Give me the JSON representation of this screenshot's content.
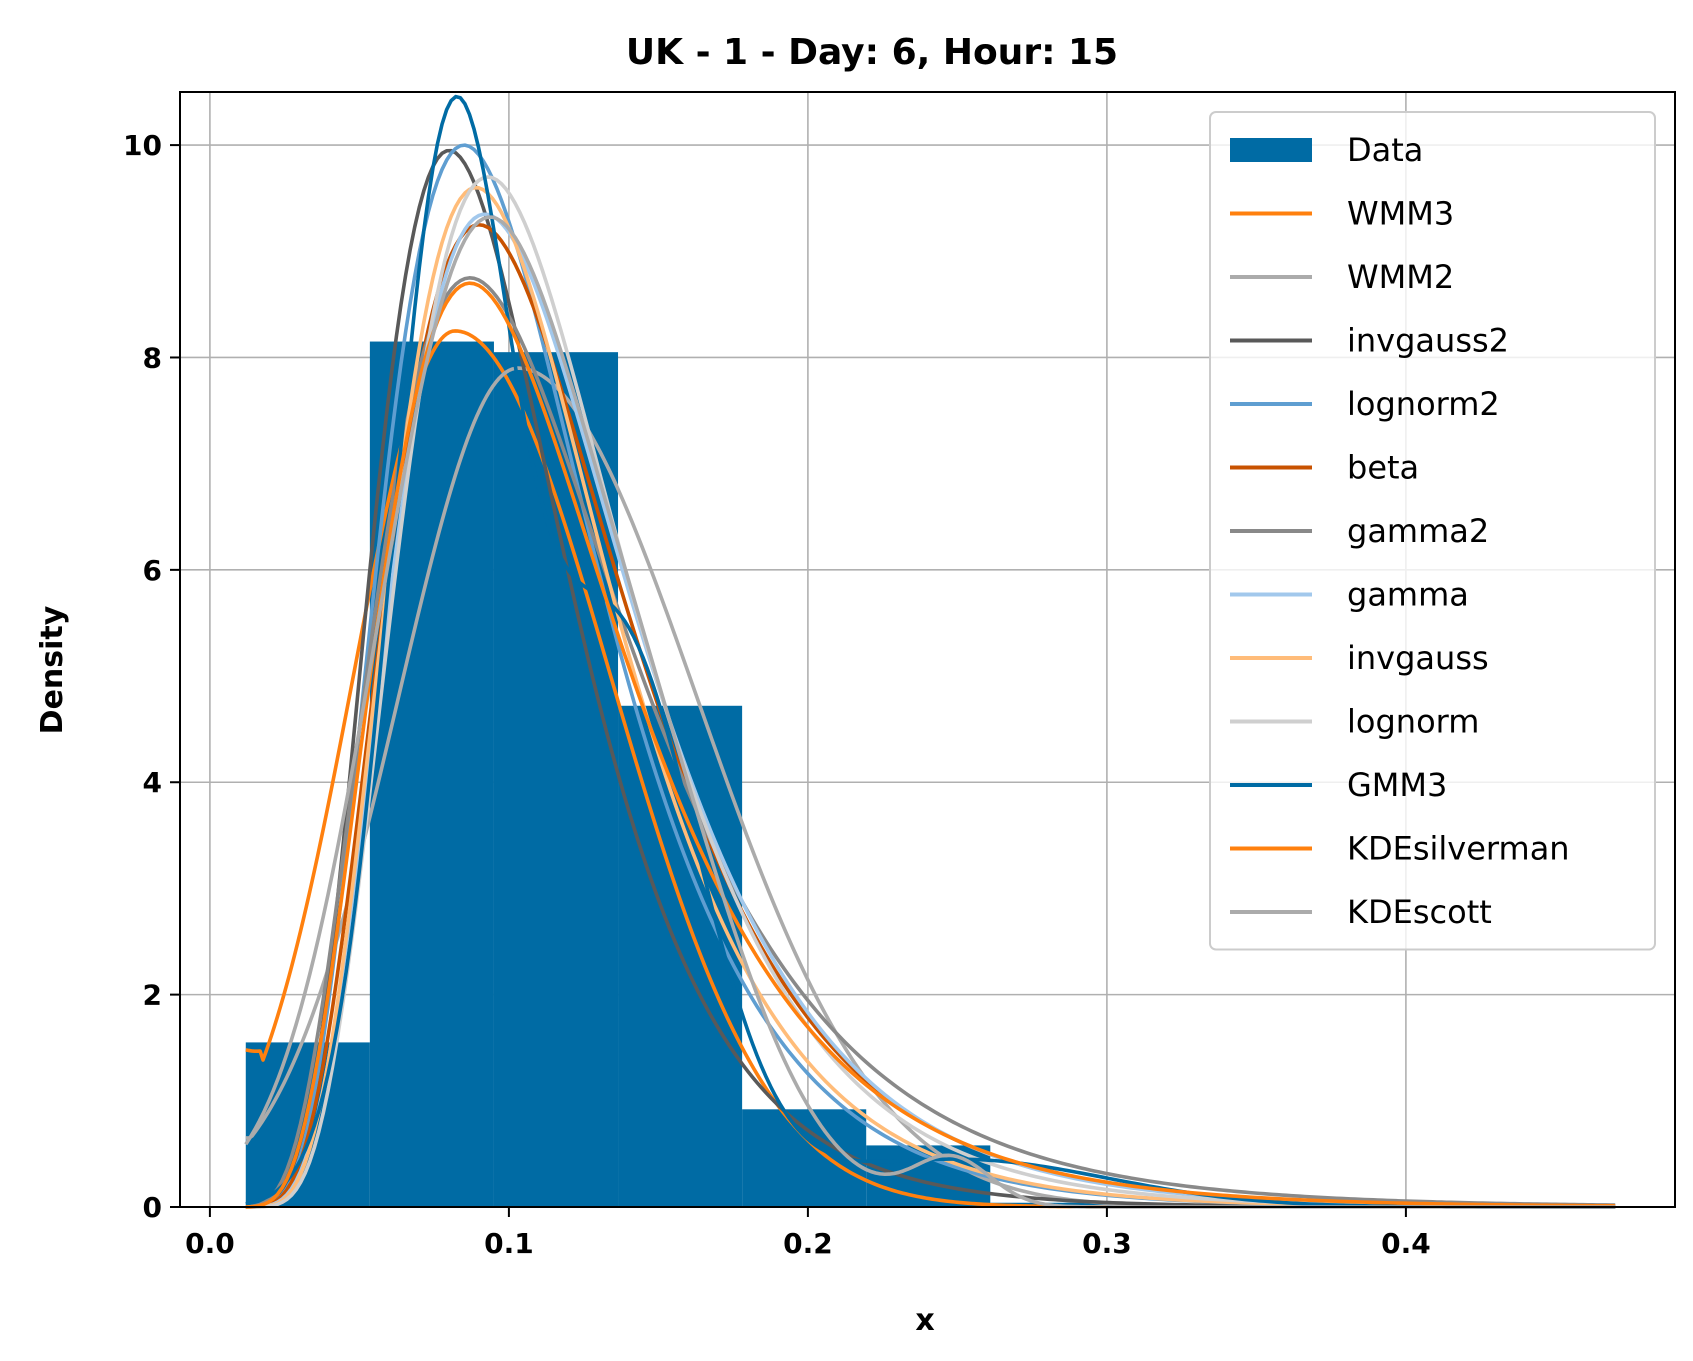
{
  "chart_data": {
    "type": "histogram+line",
    "title": "UK - 1 - Day: 6, Hour: 15",
    "xlabel": "x",
    "ylabel": "Density",
    "xlim": [
      -0.01,
      0.49
    ],
    "ylim": [
      0,
      10.5
    ],
    "xticks": [
      0.0,
      0.1,
      0.2,
      0.3,
      0.4
    ],
    "xtick_labels": [
      "0.0",
      "0.1",
      "0.2",
      "0.3",
      "0.4"
    ],
    "yticks": [
      0,
      2,
      4,
      6,
      8,
      10
    ],
    "ytick_labels": [
      "0",
      "2",
      "4",
      "6",
      "8",
      "10"
    ],
    "grid": true,
    "legend_position": "top-right",
    "histogram": {
      "name": "Data",
      "color": "#006BA4",
      "bin_edges": [
        0.012,
        0.0535,
        0.095,
        0.1365,
        0.178,
        0.2195,
        0.261,
        0.3025,
        0.344,
        0.3855,
        0.427,
        0.4685
      ],
      "densities": [
        1.55,
        8.15,
        8.05,
        4.72,
        0.92,
        0.58,
        0.04,
        0.02,
        0.01,
        0.005,
        0.01
      ]
    },
    "series": [
      {
        "name": "WMM3",
        "color": "#FF800E",
        "kind": "skewed",
        "x0": 0.012,
        "x1": 0.3,
        "peak_x": 0.082,
        "peak_y": 8.25,
        "start_y": 1.48,
        "left_width": 0.034,
        "right_width": 0.052
      },
      {
        "name": "WMM2",
        "color": "#ABABAB",
        "kind": "skewed",
        "x0": 0.012,
        "x1": 0.33,
        "peak_x": 0.103,
        "peak_y": 7.9,
        "start_y": 0.65,
        "left_width": 0.04,
        "right_width": 0.06
      },
      {
        "name": "invgauss2",
        "color": "#595959",
        "kind": "lognormal",
        "x0": 0.012,
        "x1": 0.47,
        "mode": 0.08,
        "peak_y": 9.95,
        "sigma": 0.4
      },
      {
        "name": "lognorm2",
        "color": "#5F9ED1",
        "kind": "lognormal",
        "x0": 0.012,
        "x1": 0.47,
        "mode": 0.085,
        "peak_y": 10.0,
        "sigma": 0.42
      },
      {
        "name": "beta",
        "color": "#C85200",
        "kind": "lognormal",
        "x0": 0.012,
        "x1": 0.47,
        "mode": 0.09,
        "peak_y": 9.25,
        "sigma": 0.44
      },
      {
        "name": "gamma2",
        "color": "#898989",
        "kind": "lognormal",
        "x0": 0.012,
        "x1": 0.47,
        "mode": 0.087,
        "peak_y": 8.75,
        "sigma": 0.48
      },
      {
        "name": "gamma",
        "color": "#A2C8EC",
        "kind": "lognormal",
        "x0": 0.012,
        "x1": 0.47,
        "mode": 0.092,
        "peak_y": 9.35,
        "sigma": 0.43
      },
      {
        "name": "invgauss",
        "color": "#FFBC79",
        "kind": "lognormal",
        "x0": 0.012,
        "x1": 0.47,
        "mode": 0.089,
        "peak_y": 9.6,
        "sigma": 0.41
      },
      {
        "name": "lognorm",
        "color": "#CFCFCF",
        "kind": "lognormal",
        "x0": 0.012,
        "x1": 0.47,
        "mode": 0.093,
        "peak_y": 9.7,
        "sigma": 0.41
      },
      {
        "name": "GMM3",
        "color": "#006BA4",
        "kind": "mixture",
        "x0": 0.012,
        "x1": 0.47,
        "components": [
          [
            0.08,
            0.02,
            9.6
          ],
          [
            0.135,
            0.028,
            5.4
          ],
          [
            0.25,
            0.05,
            0.45
          ]
        ]
      },
      {
        "name": "KDEsilverman",
        "color": "#FF800E",
        "kind": "lognormal",
        "x0": 0.012,
        "x1": 0.47,
        "mode": 0.087,
        "peak_y": 8.7,
        "sigma": 0.46
      },
      {
        "name": "KDEscott",
        "color": "#ABABAB",
        "kind": "mixture",
        "x0": 0.012,
        "x1": 0.47,
        "components": [
          [
            0.085,
            0.032,
            7.9
          ],
          [
            0.14,
            0.035,
            4.1
          ],
          [
            0.248,
            0.013,
            0.45
          ]
        ]
      }
    ]
  }
}
